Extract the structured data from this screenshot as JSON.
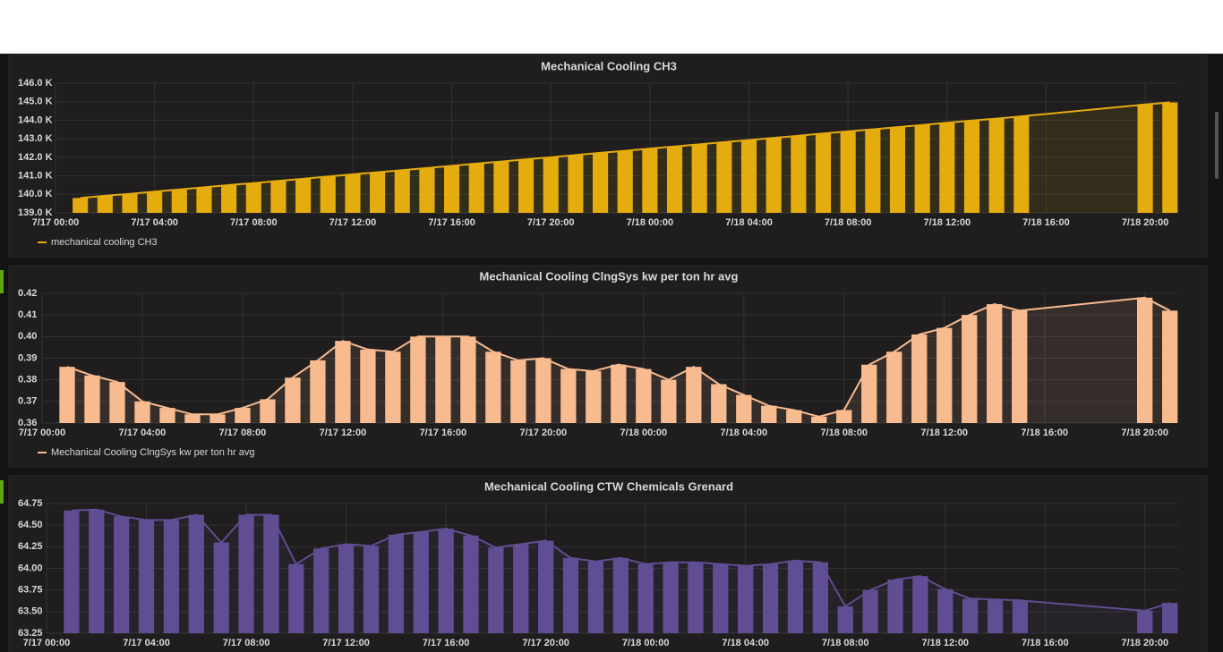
{
  "chart_data": [
    {
      "type": "bar",
      "title": "Mechanical Cooling CH3",
      "line": true,
      "grid": true,
      "legend": "bottom-left",
      "x": [
        "7/17 01:00",
        "7/17 02:00",
        "7/17 03:00",
        "7/17 04:00",
        "7/17 05:00",
        "7/17 06:00",
        "7/17 07:00",
        "7/17 08:00",
        "7/17 09:00",
        "7/17 10:00",
        "7/17 11:00",
        "7/17 12:00",
        "7/17 13:00",
        "7/17 14:00",
        "7/17 15:00",
        "7/17 16:00",
        "7/17 17:00",
        "7/17 18:00",
        "7/17 19:00",
        "7/17 20:00",
        "7/17 21:00",
        "7/17 22:00",
        "7/17 23:00",
        "7/18 00:00",
        "7/18 01:00",
        "7/18 02:00",
        "7/18 03:00",
        "7/18 04:00",
        "7/18 05:00",
        "7/18 06:00",
        "7/18 07:00",
        "7/18 08:00",
        "7/18 09:00",
        "7/18 10:00",
        "7/18 11:00",
        "7/18 12:00",
        "7/18 13:00",
        "7/18 14:00",
        "7/18 15:00",
        "7/18 20:00",
        "7/18 21:00"
      ],
      "series": [
        {
          "name": "mechanical cooling CH3",
          "color": "#e5ac0e",
          "values": [
            139800,
            139920,
            140030,
            140150,
            140260,
            140380,
            140500,
            140610,
            140730,
            140840,
            140960,
            141080,
            141190,
            141310,
            141420,
            141540,
            141660,
            141770,
            141890,
            142000,
            142120,
            142240,
            142350,
            142470,
            142580,
            142700,
            142820,
            142930,
            143050,
            143160,
            143280,
            143400,
            143510,
            143630,
            143740,
            143860,
            143980,
            144090,
            144210,
            144850,
            144960
          ]
        }
      ],
      "xlim": [
        "7/17 00:00",
        "7/18 21:20"
      ],
      "xticks": [
        "7/17 00:00",
        "7/17 04:00",
        "7/17 08:00",
        "7/17 12:00",
        "7/17 16:00",
        "7/17 20:00",
        "7/18 00:00",
        "7/18 04:00",
        "7/18 08:00",
        "7/18 12:00",
        "7/18 16:00",
        "7/18 20:00"
      ],
      "ylim": [
        139000,
        146000
      ],
      "yticks": [
        {
          "value": 139000,
          "label": "139.0 K"
        },
        {
          "value": 140000,
          "label": "140.0 K"
        },
        {
          "value": 141000,
          "label": "141.0 K"
        },
        {
          "value": 142000,
          "label": "142.0 K"
        },
        {
          "value": 143000,
          "label": "143.0 K"
        },
        {
          "value": 144000,
          "label": "144.0 K"
        },
        {
          "value": 145000,
          "label": "145.0 K"
        },
        {
          "value": 146000,
          "label": "146.0 K"
        }
      ]
    },
    {
      "type": "bar",
      "title": "Mechanical Cooling ClngSys kw per ton hr avg",
      "line": true,
      "grid": true,
      "legend": "bottom-left",
      "x": [
        "7/17 01:00",
        "7/17 02:00",
        "7/17 03:00",
        "7/17 04:00",
        "7/17 05:00",
        "7/17 06:00",
        "7/17 07:00",
        "7/17 08:00",
        "7/17 09:00",
        "7/17 10:00",
        "7/17 11:00",
        "7/17 12:00",
        "7/17 13:00",
        "7/17 14:00",
        "7/17 15:00",
        "7/17 16:00",
        "7/17 17:00",
        "7/17 18:00",
        "7/17 19:00",
        "7/17 20:00",
        "7/17 21:00",
        "7/17 22:00",
        "7/17 23:00",
        "7/18 00:00",
        "7/18 01:00",
        "7/18 02:00",
        "7/18 03:00",
        "7/18 04:00",
        "7/18 05:00",
        "7/18 06:00",
        "7/18 07:00",
        "7/18 08:00",
        "7/18 09:00",
        "7/18 10:00",
        "7/18 11:00",
        "7/18 12:00",
        "7/18 13:00",
        "7/18 14:00",
        "7/18 15:00",
        "7/18 20:00",
        "7/18 21:00"
      ],
      "series": [
        {
          "name": "Mechanical Cooling ClngSys kw per ton hr avg",
          "color": "#f9ba8f",
          "values": [
            0.386,
            0.382,
            0.379,
            0.37,
            0.367,
            0.364,
            0.364,
            0.367,
            0.371,
            0.381,
            0.389,
            0.398,
            0.394,
            0.393,
            0.4,
            0.4,
            0.4,
            0.393,
            0.389,
            0.39,
            0.385,
            0.384,
            0.387,
            0.385,
            0.38,
            0.386,
            0.378,
            0.373,
            0.368,
            0.366,
            0.363,
            0.366,
            0.387,
            0.393,
            0.401,
            0.404,
            0.41,
            0.415,
            0.412,
            0.418,
            0.412
          ]
        }
      ],
      "xlim": [
        "7/17 00:00",
        "7/18 21:20"
      ],
      "xticks": [
        "7/17 00:00",
        "7/17 04:00",
        "7/17 08:00",
        "7/17 12:00",
        "7/17 16:00",
        "7/17 20:00",
        "7/18 00:00",
        "7/18 04:00",
        "7/18 08:00",
        "7/18 12:00",
        "7/18 16:00",
        "7/18 20:00"
      ],
      "ylim": [
        0.36,
        0.42
      ],
      "yticks": [
        0.36,
        0.37,
        0.38,
        0.39,
        {
          "value": 0.4,
          "label": "0.40"
        },
        0.41,
        0.42
      ]
    },
    {
      "type": "bar",
      "title": "Mechanical Cooling CTW Chemicals Grenard",
      "line": true,
      "grid": true,
      "x": [
        "7/17 01:00",
        "7/17 02:00",
        "7/17 03:00",
        "7/17 04:00",
        "7/17 05:00",
        "7/17 06:00",
        "7/17 07:00",
        "7/17 08:00",
        "7/17 09:00",
        "7/17 10:00",
        "7/17 11:00",
        "7/17 12:00",
        "7/17 13:00",
        "7/17 14:00",
        "7/17 15:00",
        "7/17 16:00",
        "7/17 17:00",
        "7/17 18:00",
        "7/17 19:00",
        "7/17 20:00",
        "7/17 21:00",
        "7/17 22:00",
        "7/17 23:00",
        "7/18 00:00",
        "7/18 01:00",
        "7/18 02:00",
        "7/18 03:00",
        "7/18 04:00",
        "7/18 05:00",
        "7/18 06:00",
        "7/18 07:00",
        "7/18 08:00",
        "7/18 09:00",
        "7/18 10:00",
        "7/18 11:00",
        "7/18 12:00",
        "7/18 13:00",
        "7/18 14:00",
        "7/18 15:00",
        "7/18 20:00",
        "7/18 21:00"
      ],
      "series": [
        {
          "color": "#614d93",
          "values": [
            64.67,
            64.68,
            64.6,
            64.56,
            64.56,
            64.62,
            64.3,
            64.62,
            64.62,
            64.05,
            64.23,
            64.28,
            64.26,
            64.39,
            64.42,
            64.46,
            64.38,
            64.24,
            64.28,
            64.32,
            64.12,
            64.08,
            64.12,
            64.05,
            64.07,
            64.07,
            64.05,
            64.03,
            64.05,
            64.09,
            64.07,
            63.56,
            63.75,
            63.87,
            63.91,
            63.76,
            63.65,
            63.64,
            63.63,
            63.51,
            63.6
          ]
        }
      ],
      "xlim": [
        "7/17 00:00",
        "7/18 21:20"
      ],
      "xticks": [
        "7/17 00:00",
        "7/17 04:00",
        "7/17 08:00",
        "7/17 12:00",
        "7/17 16:00",
        "7/17 20:00",
        "7/18 00:00",
        "7/18 04:00",
        "7/18 08:00",
        "7/18 12:00",
        "7/18 16:00",
        "7/18 20:00"
      ],
      "ylim": [
        63.25,
        64.75
      ],
      "yticks": [
        63.25,
        {
          "value": 63.5,
          "label": "63.50"
        },
        63.75,
        {
          "value": 64,
          "label": "64.00"
        },
        64.25,
        {
          "value": 64.5,
          "label": "64.50"
        },
        64.75
      ]
    }
  ]
}
